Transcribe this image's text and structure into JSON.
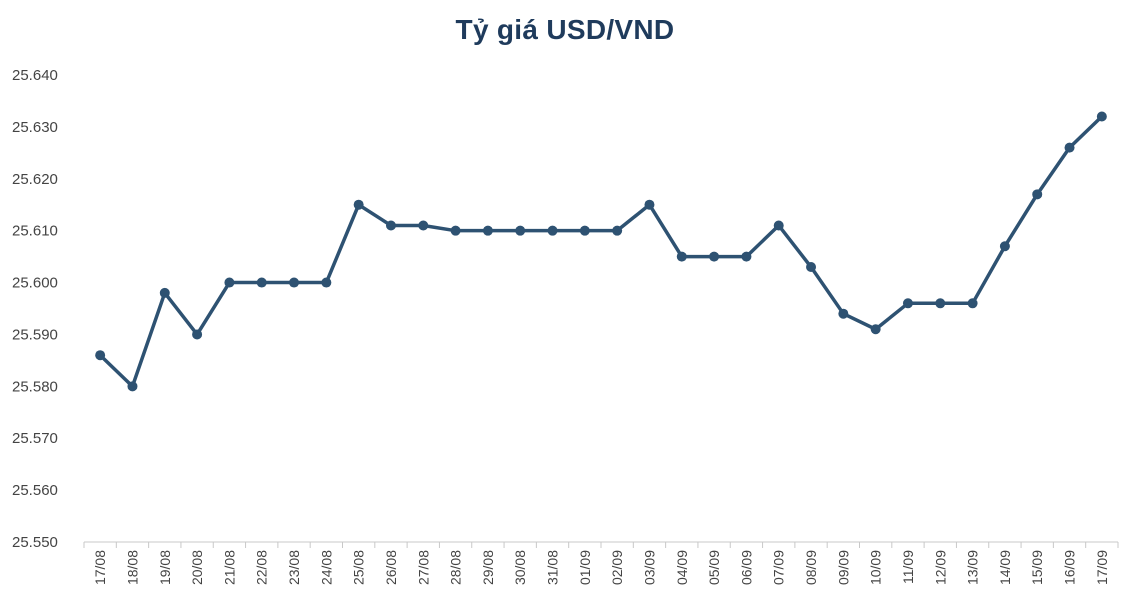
{
  "chart_data": {
    "type": "line",
    "title": "Tỷ giá USD/VND",
    "xlabel": "",
    "ylabel": "",
    "ylim": [
      25550,
      25640
    ],
    "y_ticks": [
      25550,
      25560,
      25570,
      25580,
      25590,
      25600,
      25610,
      25620,
      25630,
      25640
    ],
    "y_tick_labels": [
      "25.550",
      "25.560",
      "25.570",
      "25.580",
      "25.590",
      "25.600",
      "25.610",
      "25.620",
      "25.630",
      "25.640"
    ],
    "grid": false,
    "legend": "none",
    "line_color": "#2e5272",
    "categories": [
      "17/08",
      "18/08",
      "19/08",
      "20/08",
      "21/08",
      "22/08",
      "23/08",
      "24/08",
      "25/08",
      "26/08",
      "27/08",
      "28/08",
      "29/08",
      "30/08",
      "31/08",
      "01/09",
      "02/09",
      "03/09",
      "04/09",
      "05/09",
      "06/09",
      "07/09",
      "08/09",
      "09/09",
      "10/09",
      "11/09",
      "12/09",
      "13/09",
      "14/09",
      "15/09",
      "16/09",
      "17/09"
    ],
    "values": [
      25586,
      25580,
      25598,
      25590,
      25600,
      25600,
      25600,
      25600,
      25615,
      25611,
      25611,
      25610,
      25610,
      25610,
      25610,
      25610,
      25610,
      25615,
      25605,
      25605,
      25605,
      25611,
      25603,
      25594,
      25591,
      25596,
      25596,
      25596,
      25607,
      25617,
      25626,
      25632
    ]
  }
}
